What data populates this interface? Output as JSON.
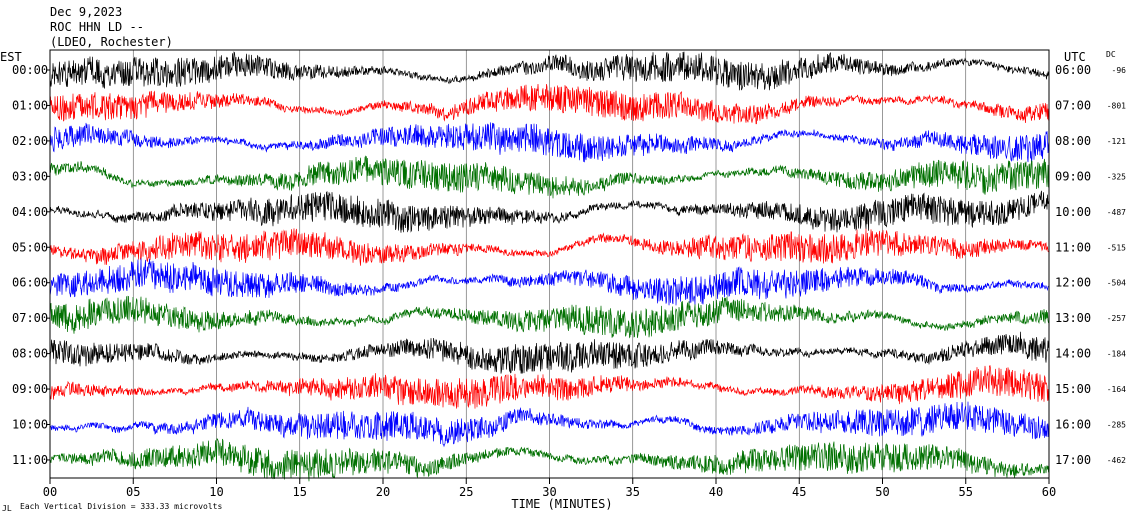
{
  "header": {
    "date": "Dec 9,2023",
    "station": "ROC HHN LD --",
    "network": "(LDEO, Rochester)"
  },
  "left_axis_title": "EST",
  "right_axis_title": "UTC",
  "dc_title": "DC",
  "footer": {
    "scale_text": "Each Vertical Division =  333.33 microvolts",
    "logo_text": "JL"
  },
  "chart_data": {
    "type": "line",
    "title": "Dec 9,2023",
    "xlabel": "TIME (MINUTES)",
    "ylabel": "",
    "xlim": [
      0,
      60
    ],
    "x_ticks": [
      "00",
      "05",
      "10",
      "15",
      "20",
      "25",
      "30",
      "35",
      "40",
      "45",
      "50",
      "55",
      "60"
    ],
    "grid": true,
    "trace_colors": [
      "#000000",
      "#ff0000",
      "#0000ff",
      "#007000"
    ],
    "rows": [
      {
        "local_time": "00:00",
        "utc_time": "06:00",
        "dc_offset": "-96"
      },
      {
        "local_time": "01:00",
        "utc_time": "07:00",
        "dc_offset": "-801"
      },
      {
        "local_time": "02:00",
        "utc_time": "08:00",
        "dc_offset": "-121"
      },
      {
        "local_time": "03:00",
        "utc_time": "09:00",
        "dc_offset": "-325"
      },
      {
        "local_time": "04:00",
        "utc_time": "10:00",
        "dc_offset": "-487"
      },
      {
        "local_time": "05:00",
        "utc_time": "11:00",
        "dc_offset": "-515"
      },
      {
        "local_time": "06:00",
        "utc_time": "12:00",
        "dc_offset": "-504"
      },
      {
        "local_time": "07:00",
        "utc_time": "13:00",
        "dc_offset": "-257"
      },
      {
        "local_time": "08:00",
        "utc_time": "14:00",
        "dc_offset": "-184"
      },
      {
        "local_time": "09:00",
        "utc_time": "15:00",
        "dc_offset": "-164"
      },
      {
        "local_time": "10:00",
        "utc_time": "16:00",
        "dc_offset": "-285"
      },
      {
        "local_time": "11:00",
        "utc_time": "17:00",
        "dc_offset": "-462"
      }
    ]
  }
}
